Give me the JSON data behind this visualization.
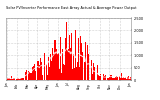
{
  "title": "Solar PV/Inverter Performance East Array Actual & Average Power Output",
  "bar_color": "#ff0000",
  "background_color": "#ffffff",
  "plot_bg_color": "#ffffff",
  "grid_color": "#aaaaaa",
  "text_color": "#000000",
  "ylim": [
    0,
    2500
  ],
  "yticks": [
    0,
    500,
    1000,
    1500,
    2000,
    2500
  ],
  "ytick_labels": [
    "0",
    "500",
    "1,000",
    "1,500",
    "2,000",
    "2,500"
  ],
  "n_bars": 200,
  "seed": 7
}
